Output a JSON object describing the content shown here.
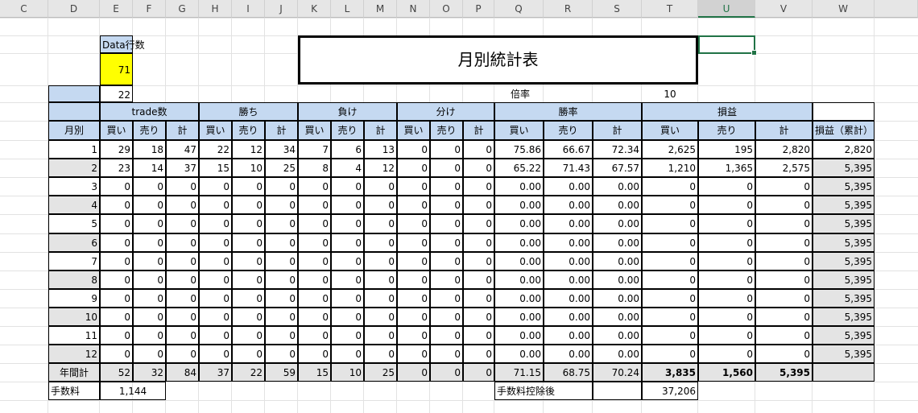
{
  "columns": [
    "C",
    "D",
    "E",
    "F",
    "G",
    "H",
    "I",
    "J",
    "K",
    "L",
    "M",
    "N",
    "O",
    "P",
    "Q",
    "R",
    "S",
    "T",
    "U",
    "V",
    "W"
  ],
  "selected_column": "U",
  "title": "月別統計表",
  "data_rows_label": "Data行数",
  "data_rows_value": "71",
  "row_22_value": "22",
  "multiplier_label": "倍率",
  "multiplier_value": "10",
  "groups": {
    "trades": "trade数",
    "wins": "勝ち",
    "losses": "負け",
    "draws": "分け",
    "win_rate": "勝率",
    "pnl": "損益"
  },
  "sub": {
    "month": "月別",
    "buy": "買い",
    "sell": "売り",
    "total": "計",
    "cumulative": "損益（累計）"
  },
  "months": [
    [
      "1",
      "29",
      "18",
      "47",
      "22",
      "12",
      "34",
      "7",
      "6",
      "13",
      "0",
      "0",
      "0",
      "75.86",
      "66.67",
      "72.34",
      "2,625",
      "195",
      "2,820",
      "2,820"
    ],
    [
      "2",
      "23",
      "14",
      "37",
      "15",
      "10",
      "25",
      "8",
      "4",
      "12",
      "0",
      "0",
      "0",
      "65.22",
      "71.43",
      "67.57",
      "1,210",
      "1,365",
      "2,575",
      "5,395"
    ],
    [
      "3",
      "0",
      "0",
      "0",
      "0",
      "0",
      "0",
      "0",
      "0",
      "0",
      "0",
      "0",
      "0",
      "0.00",
      "0.00",
      "0.00",
      "0",
      "0",
      "0",
      "5,395"
    ],
    [
      "4",
      "0",
      "0",
      "0",
      "0",
      "0",
      "0",
      "0",
      "0",
      "0",
      "0",
      "0",
      "0",
      "0.00",
      "0.00",
      "0.00",
      "0",
      "0",
      "0",
      "5,395"
    ],
    [
      "5",
      "0",
      "0",
      "0",
      "0",
      "0",
      "0",
      "0",
      "0",
      "0",
      "0",
      "0",
      "0",
      "0.00",
      "0.00",
      "0.00",
      "0",
      "0",
      "0",
      "5,395"
    ],
    [
      "6",
      "0",
      "0",
      "0",
      "0",
      "0",
      "0",
      "0",
      "0",
      "0",
      "0",
      "0",
      "0",
      "0.00",
      "0.00",
      "0.00",
      "0",
      "0",
      "0",
      "5,395"
    ],
    [
      "7",
      "0",
      "0",
      "0",
      "0",
      "0",
      "0",
      "0",
      "0",
      "0",
      "0",
      "0",
      "0",
      "0.00",
      "0.00",
      "0.00",
      "0",
      "0",
      "0",
      "5,395"
    ],
    [
      "8",
      "0",
      "0",
      "0",
      "0",
      "0",
      "0",
      "0",
      "0",
      "0",
      "0",
      "0",
      "0",
      "0.00",
      "0.00",
      "0.00",
      "0",
      "0",
      "0",
      "5,395"
    ],
    [
      "9",
      "0",
      "0",
      "0",
      "0",
      "0",
      "0",
      "0",
      "0",
      "0",
      "0",
      "0",
      "0",
      "0.00",
      "0.00",
      "0.00",
      "0",
      "0",
      "0",
      "5,395"
    ],
    [
      "10",
      "0",
      "0",
      "0",
      "0",
      "0",
      "0",
      "0",
      "0",
      "0",
      "0",
      "0",
      "0",
      "0.00",
      "0.00",
      "0.00",
      "0",
      "0",
      "0",
      "5,395"
    ],
    [
      "11",
      "0",
      "0",
      "0",
      "0",
      "0",
      "0",
      "0",
      "0",
      "0",
      "0",
      "0",
      "0",
      "0.00",
      "0.00",
      "0.00",
      "0",
      "0",
      "0",
      "5,395"
    ],
    [
      "12",
      "0",
      "0",
      "0",
      "0",
      "0",
      "0",
      "0",
      "0",
      "0",
      "0",
      "0",
      "0",
      "0.00",
      "0.00",
      "0.00",
      "0",
      "0",
      "0",
      "5,395"
    ]
  ],
  "annual": [
    "年間計",
    "52",
    "32",
    "84",
    "37",
    "22",
    "59",
    "15",
    "10",
    "25",
    "0",
    "0",
    "0",
    "71.15",
    "68.75",
    "70.24",
    "3,835",
    "1,560",
    "5,395"
  ],
  "fee_label": "手数料",
  "fee_value": "1,144",
  "after_fee_label": "手数料控除後",
  "after_fee_value": "37,206"
}
